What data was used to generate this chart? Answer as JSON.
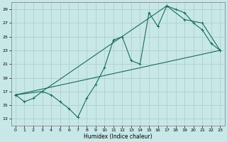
{
  "background_color": "#c8e8e8",
  "grid_color": "#b0d0d0",
  "line_color": "#1a6b5a",
  "xlabel": "Humidex (Indice chaleur)",
  "xlim": [
    -0.5,
    23.5
  ],
  "ylim": [
    12,
    30
  ],
  "yticks": [
    13,
    15,
    17,
    19,
    21,
    23,
    25,
    27,
    29
  ],
  "xticks": [
    0,
    1,
    2,
    3,
    4,
    5,
    6,
    7,
    8,
    9,
    10,
    11,
    12,
    13,
    14,
    15,
    16,
    17,
    18,
    19,
    20,
    21,
    22,
    23
  ],
  "line1_x": [
    0,
    1,
    2,
    3,
    4,
    5,
    6,
    7,
    8,
    9,
    10,
    11,
    12,
    13,
    14,
    15,
    16,
    17,
    18,
    19,
    20,
    21,
    22,
    23
  ],
  "line1_y": [
    16.5,
    15.5,
    16.0,
    17.0,
    16.5,
    15.5,
    14.5,
    13.2,
    16.0,
    18.0,
    20.5,
    24.5,
    25.0,
    21.5,
    21.0,
    28.5,
    26.5,
    29.5,
    29.0,
    28.5,
    27.0,
    26.0,
    24.0,
    23.0
  ],
  "line2_x": [
    0,
    3,
    17,
    19,
    21,
    23
  ],
  "line2_y": [
    16.5,
    17.0,
    29.5,
    27.5,
    27.0,
    23.0
  ],
  "line3_x": [
    0,
    23
  ],
  "line3_y": [
    16.5,
    23.0
  ]
}
